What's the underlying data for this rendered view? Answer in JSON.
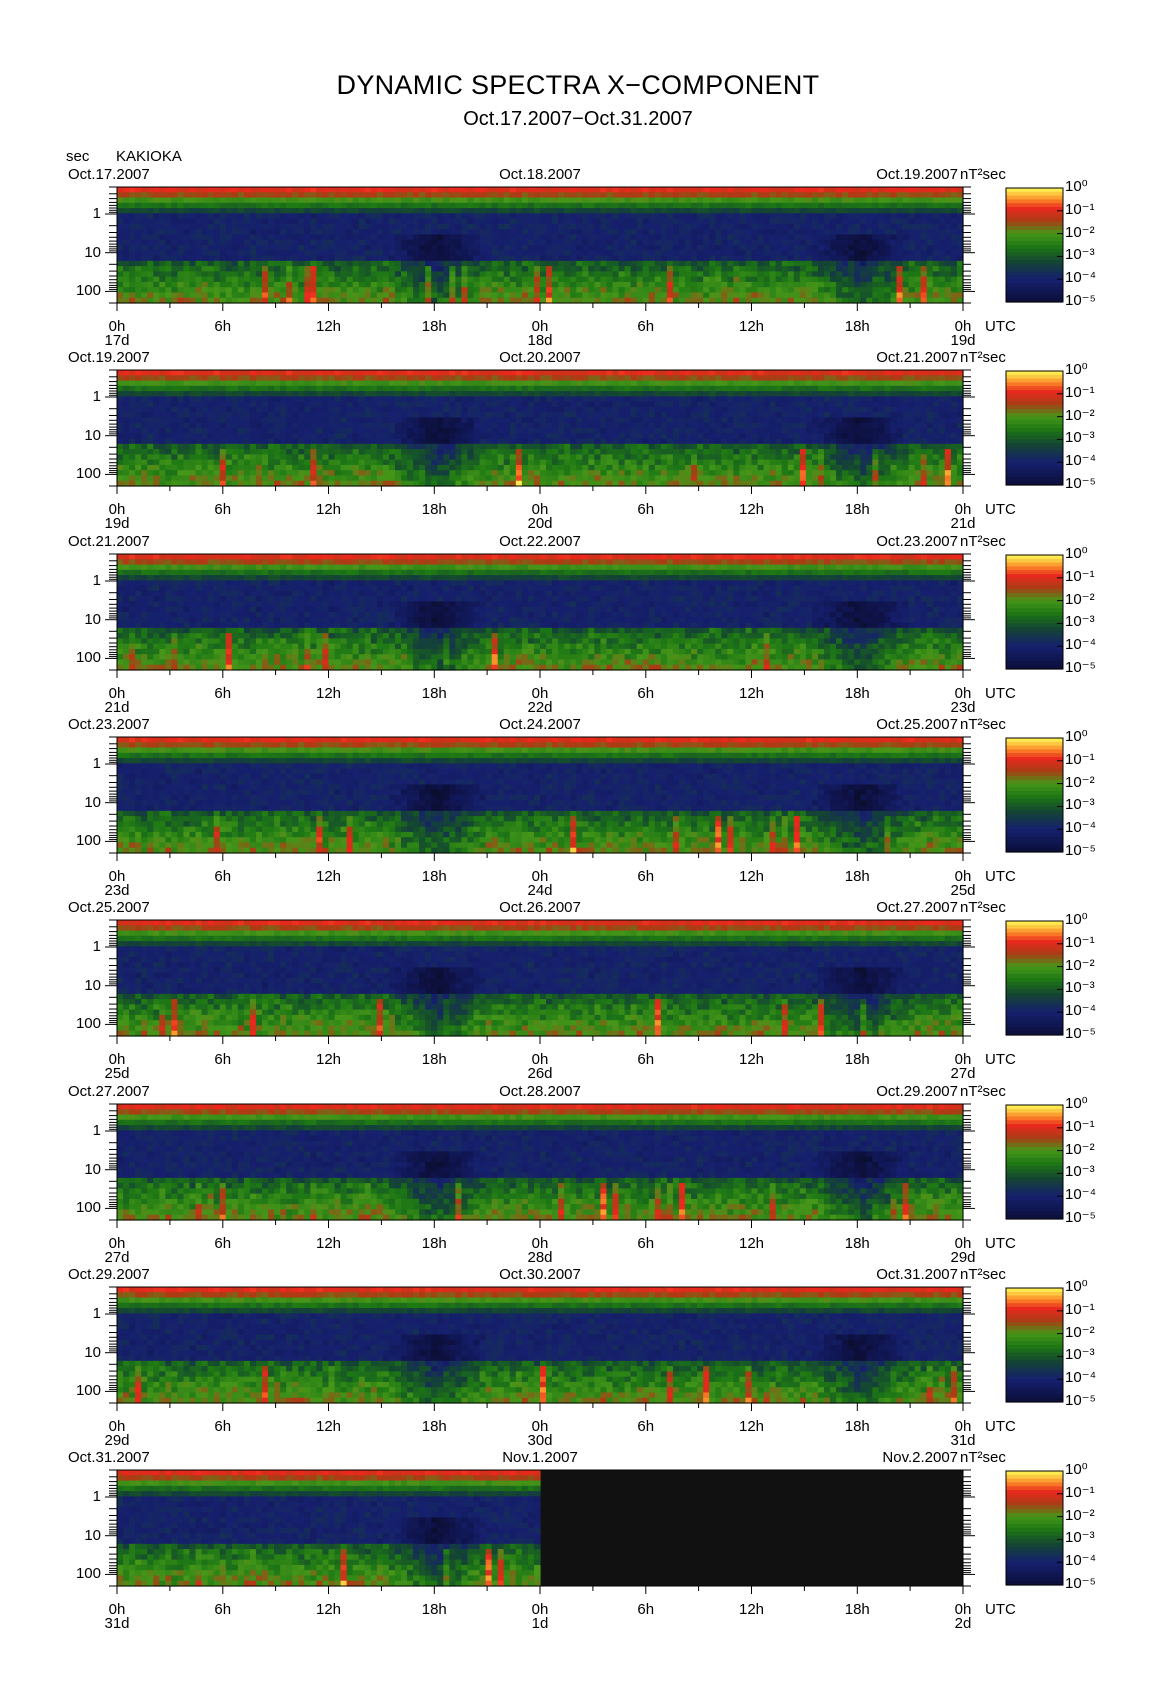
{
  "title": "DYNAMIC SPECTRA X−COMPONENT",
  "subtitle": "Oct.17.2007−Oct.31.2007",
  "station": "KAKIOKA",
  "y_unit": "sec",
  "colorbar_unit": "nT²sec",
  "colorbar_ticks": [
    "10⁰",
    "10⁻¹",
    "10⁻²",
    "10⁻³",
    "10⁻⁴",
    "10⁻⁵"
  ],
  "time_axis_unit": "UTC",
  "chart_data": {
    "type": "heatmap",
    "title": "DYNAMIC SPECTRA X−COMPONENT",
    "subtitle": "Oct.17.2007−Oct.31.2007",
    "ylabel": "sec",
    "y_ticks": [
      "1",
      "10",
      "100"
    ],
    "x_ticks": [
      "0h",
      "6h",
      "12h",
      "18h",
      "0h",
      "6h",
      "12h",
      "18h",
      "0h"
    ],
    "colorbar": {
      "label": "nT²sec",
      "range": [
        1e-05,
        1
      ],
      "scale": "log"
    },
    "panels": [
      {
        "start_label": "Oct.17.2007",
        "mid_label": "Oct.18.2007",
        "end_label": "Oct.19.2007",
        "days": [
          "17d",
          "18d",
          "19d"
        ],
        "data_fraction": 1.0
      },
      {
        "start_label": "Oct.19.2007",
        "mid_label": "Oct.20.2007",
        "end_label": "Oct.21.2007",
        "days": [
          "19d",
          "20d",
          "21d"
        ],
        "data_fraction": 1.0
      },
      {
        "start_label": "Oct.21.2007",
        "mid_label": "Oct.22.2007",
        "end_label": "Oct.23.2007",
        "days": [
          "21d",
          "22d",
          "23d"
        ],
        "data_fraction": 1.0
      },
      {
        "start_label": "Oct.23.2007",
        "mid_label": "Oct.24.2007",
        "end_label": "Oct.25.2007",
        "days": [
          "23d",
          "24d",
          "25d"
        ],
        "data_fraction": 1.0
      },
      {
        "start_label": "Oct.25.2007",
        "mid_label": "Oct.26.2007",
        "end_label": "Oct.27.2007",
        "days": [
          "25d",
          "26d",
          "27d"
        ],
        "data_fraction": 1.0
      },
      {
        "start_label": "Oct.27.2007",
        "mid_label": "Oct.28.2007",
        "end_label": "Oct.29.2007",
        "days": [
          "27d",
          "28d",
          "29d"
        ],
        "data_fraction": 1.0
      },
      {
        "start_label": "Oct.29.2007",
        "mid_label": "Oct.30.2007",
        "end_label": "Oct.31.2007",
        "days": [
          "29d",
          "30d",
          "31d"
        ],
        "data_fraction": 1.0
      },
      {
        "start_label": "Oct.31.2007",
        "mid_label": "Nov.1.2007",
        "end_label": "Nov.2.2007",
        "days": [
          "31d",
          "1d",
          "2d"
        ],
        "data_fraction": 0.5
      }
    ]
  }
}
